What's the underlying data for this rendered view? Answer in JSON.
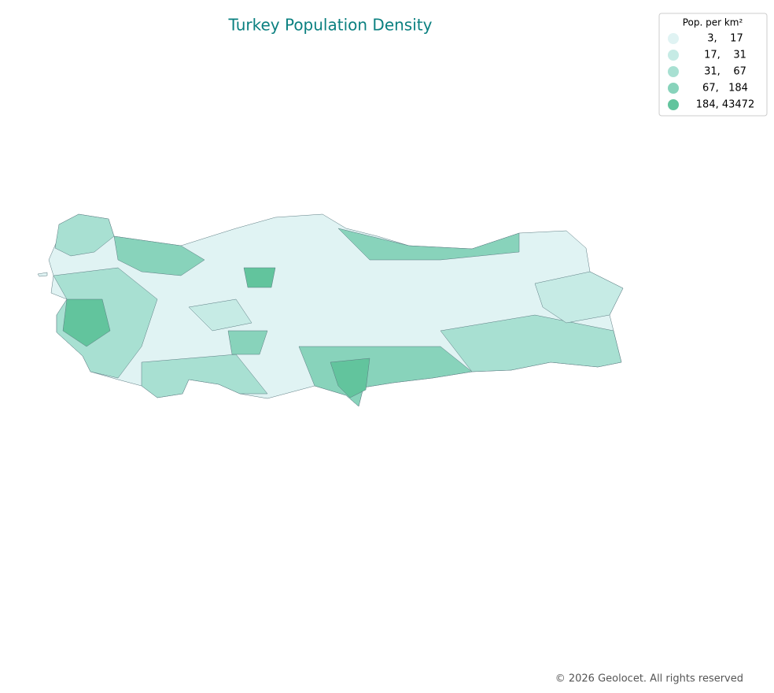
{
  "title": "Turkey Population Density",
  "legend": {
    "title": "Pop. per km²",
    "items": [
      {
        "label": "3,    17",
        "color": "#e0f3f3"
      },
      {
        "label": "17,    31",
        "color": "#c6ebe5"
      },
      {
        "label": "31,    67",
        "color": "#a8e0d2"
      },
      {
        "label": "67,   184",
        "color": "#88d3bb"
      },
      {
        "label": "184, 43472",
        "color": "#62c49d"
      }
    ]
  },
  "footer": "© 2026 Geolocet. All rights reserved"
}
